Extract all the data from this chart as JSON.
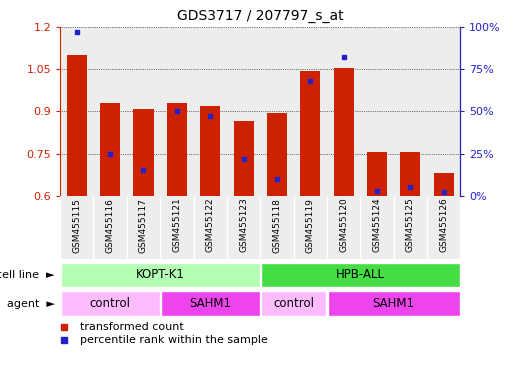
{
  "title": "GDS3717 / 207797_s_at",
  "samples": [
    "GSM455115",
    "GSM455116",
    "GSM455117",
    "GSM455121",
    "GSM455122",
    "GSM455123",
    "GSM455118",
    "GSM455119",
    "GSM455120",
    "GSM455124",
    "GSM455125",
    "GSM455126"
  ],
  "red_values": [
    1.1,
    0.93,
    0.91,
    0.93,
    0.92,
    0.865,
    0.895,
    1.045,
    1.055,
    0.755,
    0.755,
    0.68
  ],
  "blue_values_pct": [
    97,
    25,
    15,
    50,
    47,
    22,
    10,
    68,
    82,
    3,
    5,
    2
  ],
  "ymin": 0.6,
  "ymax": 1.2,
  "yticks": [
    0.6,
    0.75,
    0.9,
    1.05,
    1.2
  ],
  "y2ticks": [
    0,
    25,
    50,
    75,
    100
  ],
  "y2labels": [
    "0%",
    "25%",
    "50%",
    "75%",
    "100%"
  ],
  "bar_color": "#cc2200",
  "dot_color": "#2222cc",
  "baseline": 0.6,
  "cell_lines": [
    {
      "label": "KOPT-K1",
      "start": 0,
      "end": 5,
      "color": "#b3ffb3"
    },
    {
      "label": "HPB-ALL",
      "start": 6,
      "end": 11,
      "color": "#44dd44"
    }
  ],
  "agent_groups": [
    {
      "label": "control",
      "start": 0,
      "end": 2,
      "color": "#ffbbff"
    },
    {
      "label": "SAHM1",
      "start": 3,
      "end": 5,
      "color": "#ee44ee"
    },
    {
      "label": "control",
      "start": 6,
      "end": 7,
      "color": "#ffbbff"
    },
    {
      "label": "SAHM1",
      "start": 8,
      "end": 11,
      "color": "#ee44ee"
    }
  ],
  "cell_line_row_label": "cell line",
  "agent_row_label": "agent",
  "legend_red": "transformed count",
  "legend_blue": "percentile rank within the sample",
  "tick_label_color_left": "#cc2200",
  "tick_label_color_right": "#2222cc",
  "col_bg_color": "#dddddd",
  "border_color": "#aaaaaa"
}
